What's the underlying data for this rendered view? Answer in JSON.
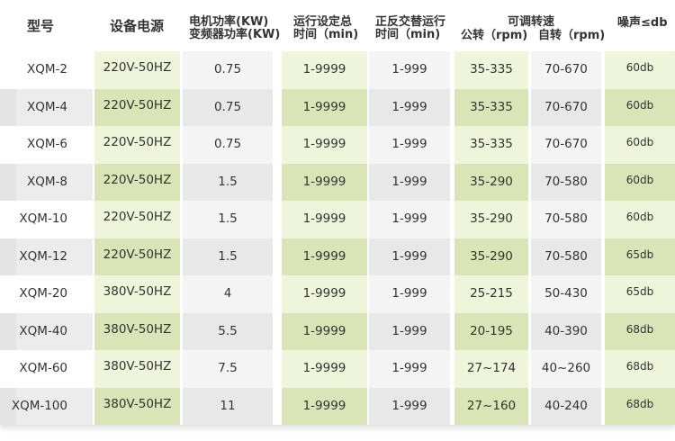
{
  "header": {
    "model": "型号",
    "power_source": "设备电源",
    "motor_power": "电机功率(KW)",
    "inverter_power": "变频器功率(KW)",
    "total_time_line1": "运行设定总",
    "total_time_line2": "时间（min)",
    "alt_time_line1": "正反交替运行",
    "alt_time_line2": "时间（min)",
    "speed": "可调转速",
    "revolution": "公转（rpm)",
    "rotation": "自转（rpm)",
    "noise": "噪声≤db"
  },
  "rows": [
    {
      "model": "XQM-2",
      "power": "220V-50HZ",
      "kw": "0.75",
      "total": "1-9999",
      "alt": "1-999",
      "rev": "35-335",
      "rot": "70-670",
      "noise": "60db"
    },
    {
      "model": "XQM-4",
      "power": "220V-50HZ",
      "kw": "0.75",
      "total": "1-9999",
      "alt": "1-999",
      "rev": "35-335",
      "rot": "70-670",
      "noise": "60db"
    },
    {
      "model": "XQM-6",
      "power": "220V-50HZ",
      "kw": "0.75",
      "total": "1-9999",
      "alt": "1-999",
      "rev": "35-335",
      "rot": "70-670",
      "noise": "60db"
    },
    {
      "model": "XQM-8",
      "power": "220V-50HZ",
      "kw": "1.5",
      "total": "1-9999",
      "alt": "1-999",
      "rev": "35-290",
      "rot": "70-580",
      "noise": "60db"
    },
    {
      "model": "XQM-10",
      "power": "220V-50HZ",
      "kw": "1.5",
      "total": "1-9999",
      "alt": "1-999",
      "rev": "35-290",
      "rot": "70-580",
      "noise": "60db"
    },
    {
      "model": "XQM-12",
      "power": "220V-50HZ",
      "kw": "1.5",
      "total": "1-9999",
      "alt": "1-999",
      "rev": "35-290",
      "rot": "70-580",
      "noise": "65db"
    },
    {
      "model": "XQM-20",
      "power": "380V-50HZ",
      "kw": "4",
      "total": "1-9999",
      "alt": "1-999",
      "rev": "25-215",
      "rot": "50-430",
      "noise": "65db"
    },
    {
      "model": "XQM-40",
      "power": "380V-50HZ",
      "kw": "5.5",
      "total": "1-9999",
      "alt": "1-999",
      "rev": "20-195",
      "rot": "40-390",
      "noise": "68db"
    },
    {
      "model": "XQM-60",
      "power": "380V-50HZ",
      "kw": "7.5",
      "total": "1-9999",
      "alt": "1-999",
      "rev": "27~174",
      "rot": "40~260",
      "noise": "68db"
    },
    {
      "model": "XQM-100",
      "power": "380V-50HZ",
      "kw": "11",
      "total": "1-9999",
      "alt": "1-999",
      "rev": "27~160",
      "rot": "40-240",
      "noise": "68db"
    }
  ],
  "colors": {
    "gray_light": "#f4f4f4",
    "gray_dark": "#e8e8e8",
    "green_light": "#eef5da",
    "green_dark": "#d9e5b6"
  }
}
